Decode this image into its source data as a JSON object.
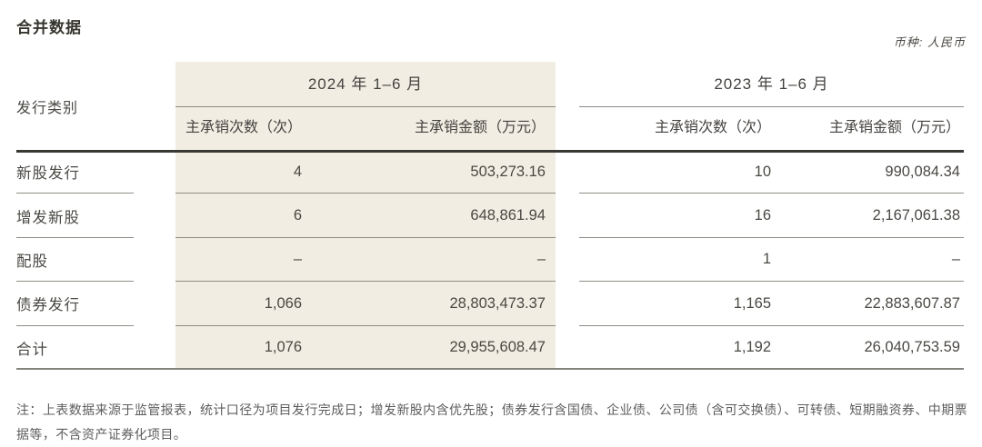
{
  "title": "合并数据",
  "currency_note": "币种: 人民币",
  "table": {
    "row_header": "发行类别",
    "group_2024": "2024 年 1–6 月",
    "group_2023": "2023 年 1–6 月",
    "sub_count": "主承销次数（次）",
    "sub_amount": "主承销金额（万元）",
    "rows": [
      {
        "label": "新股发行",
        "y2024_count": "4",
        "y2024_amount": "503,273.16",
        "y2023_count": "10",
        "y2023_amount": "990,084.34"
      },
      {
        "label": "增发新股",
        "y2024_count": "6",
        "y2024_amount": "648,861.94",
        "y2023_count": "16",
        "y2023_amount": "2,167,061.38"
      },
      {
        "label": "配股",
        "y2024_count": "–",
        "y2024_amount": "–",
        "y2023_count": "1",
        "y2023_amount": "–"
      },
      {
        "label": "债券发行",
        "y2024_count": "1,066",
        "y2024_amount": "28,803,473.37",
        "y2023_count": "1,165",
        "y2023_amount": "22,883,607.87"
      },
      {
        "label": "合计",
        "y2024_count": "1,076",
        "y2024_amount": "29,955,608.47",
        "y2023_count": "1,192",
        "y2023_amount": "26,040,753.59"
      }
    ]
  },
  "footnote": "注：上表数据来源于监管报表，统计口径为项目发行完成日；增发新股内含优先股；债券发行含国债、企业债、公司债（含可交换债）、可转债、短期融资券、中期票据等，不含资产证券化项目。",
  "colors": {
    "highlight_band": "#f1ede2",
    "heavy_rule": "#3a3833",
    "light_rule": "#908d86",
    "text": "#4a4843"
  }
}
